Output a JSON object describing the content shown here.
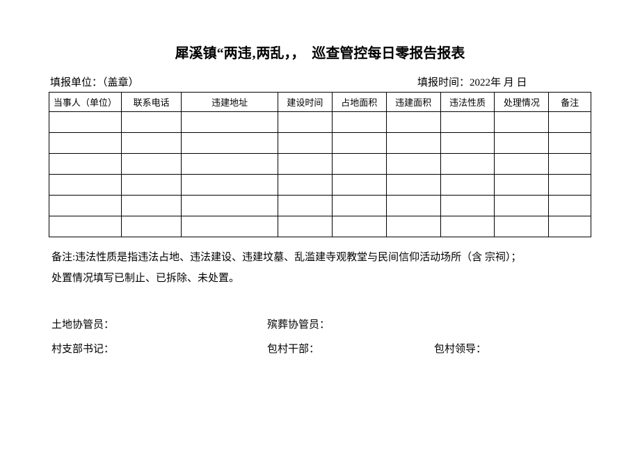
{
  "title": "犀溪镇“两违‚两乱，，　巡查管控每日零报告报表",
  "header": {
    "unit_label": "填报单位：（盖章）",
    "time_label": "填报时间：2022年 月 日"
  },
  "table": {
    "columns": [
      "当事人（单位）",
      "联系电话",
      "违建地址",
      "建设时间",
      "占地面积",
      "违建面积",
      "违法性质",
      "处理情况",
      "备注"
    ],
    "col_classes": [
      "col-party",
      "col-phone",
      "col-address",
      "col-buildtime",
      "col-landarea",
      "col-buildarea",
      "col-nature",
      "col-handle",
      "col-remark"
    ],
    "empty_rows": 6,
    "border_color": "#000000",
    "header_fontsize": 13
  },
  "notes": {
    "line1": "备注:违法性质是指违法占地、违法建设、违建坟墓、乱滥建寺观教堂与民间信仰活动场所（含 宗祠）；",
    "line2": "处置情况填写已制止、已拆除、未处置。"
  },
  "signatures": {
    "row1": {
      "item1": "土地协管员：",
      "item2": "殡葬协管员："
    },
    "row2": {
      "item1": "村支部书记：",
      "item2": "包村干部：",
      "item3": "包村领导："
    }
  },
  "style": {
    "background_color": "#ffffff",
    "text_color": "#000000",
    "font_family": "SimSun",
    "title_fontsize": 20,
    "body_fontsize": 15
  }
}
